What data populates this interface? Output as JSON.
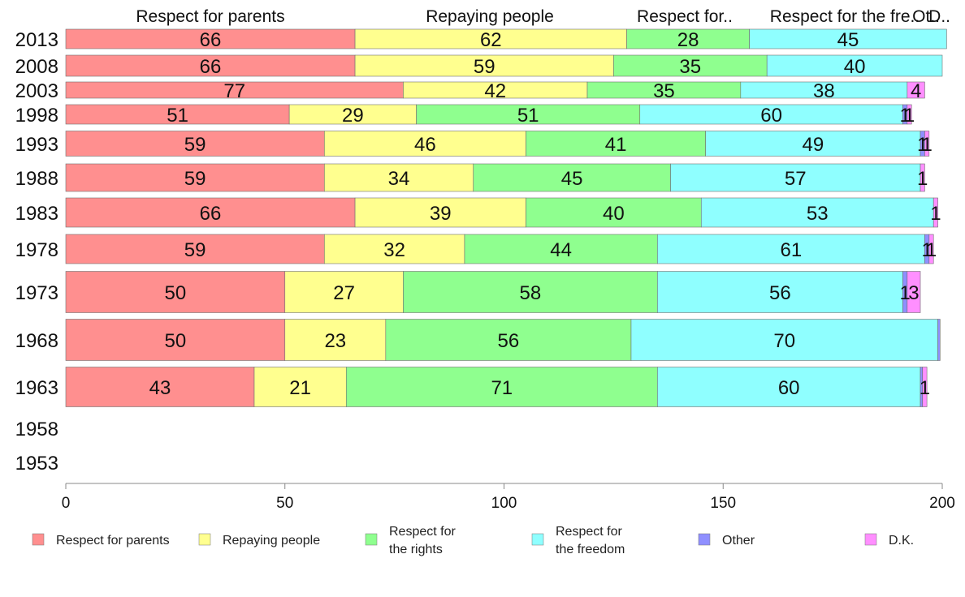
{
  "chart_data": {
    "type": "bar",
    "orientation": "horizontal",
    "stacked": true,
    "categories": [
      "2013",
      "2008",
      "2003",
      "1998",
      "1993",
      "1988",
      "1983",
      "1978",
      "1973",
      "1968",
      "1963",
      "1958",
      "1953"
    ],
    "series": [
      {
        "name": "Respect for parents",
        "color": "#ff8f8f",
        "values": [
          66,
          66,
          77,
          51,
          59,
          59,
          66,
          59,
          50,
          50,
          43,
          null,
          null
        ]
      },
      {
        "name": "Repaying people",
        "color": "#ffff8f",
        "values": [
          62,
          59,
          42,
          29,
          46,
          34,
          39,
          32,
          27,
          23,
          21,
          null,
          null
        ]
      },
      {
        "name": "Respect for the rights",
        "color": "#8fff8f",
        "values": [
          28,
          35,
          35,
          51,
          41,
          45,
          40,
          44,
          58,
          56,
          71,
          null,
          null
        ]
      },
      {
        "name": "Respect for the freedom",
        "color": "#8fffff",
        "values": [
          45,
          40,
          38,
          60,
          49,
          57,
          53,
          61,
          56,
          70,
          60,
          null,
          null
        ]
      },
      {
        "name": "Other",
        "color": "#8f8fff",
        "values": [
          0,
          0,
          0,
          1,
          1,
          0,
          0,
          1,
          1,
          0.5,
          0.5,
          null,
          null
        ]
      },
      {
        "name": "D.K.",
        "color": "#ff8fff",
        "values": [
          0,
          0,
          4,
          1,
          1,
          1,
          1,
          1,
          3,
          0,
          1,
          null,
          null
        ]
      }
    ],
    "top_labels": [
      "Respect for parents",
      "Repaying people",
      "Respect for..",
      "Respect for the fre..",
      "Ot..",
      "D.."
    ],
    "legend_labels": [
      [
        "Respect for parents"
      ],
      [
        "Repaying people"
      ],
      [
        "Respect for",
        "the rights"
      ],
      [
        "Respect for",
        "the freedom"
      ],
      [
        "Other"
      ],
      [
        "D.K."
      ]
    ],
    "xlim": [
      0,
      200
    ],
    "x_ticks": [
      0,
      50,
      100,
      150,
      200
    ],
    "legend_position": "bottom",
    "grid": false
  }
}
